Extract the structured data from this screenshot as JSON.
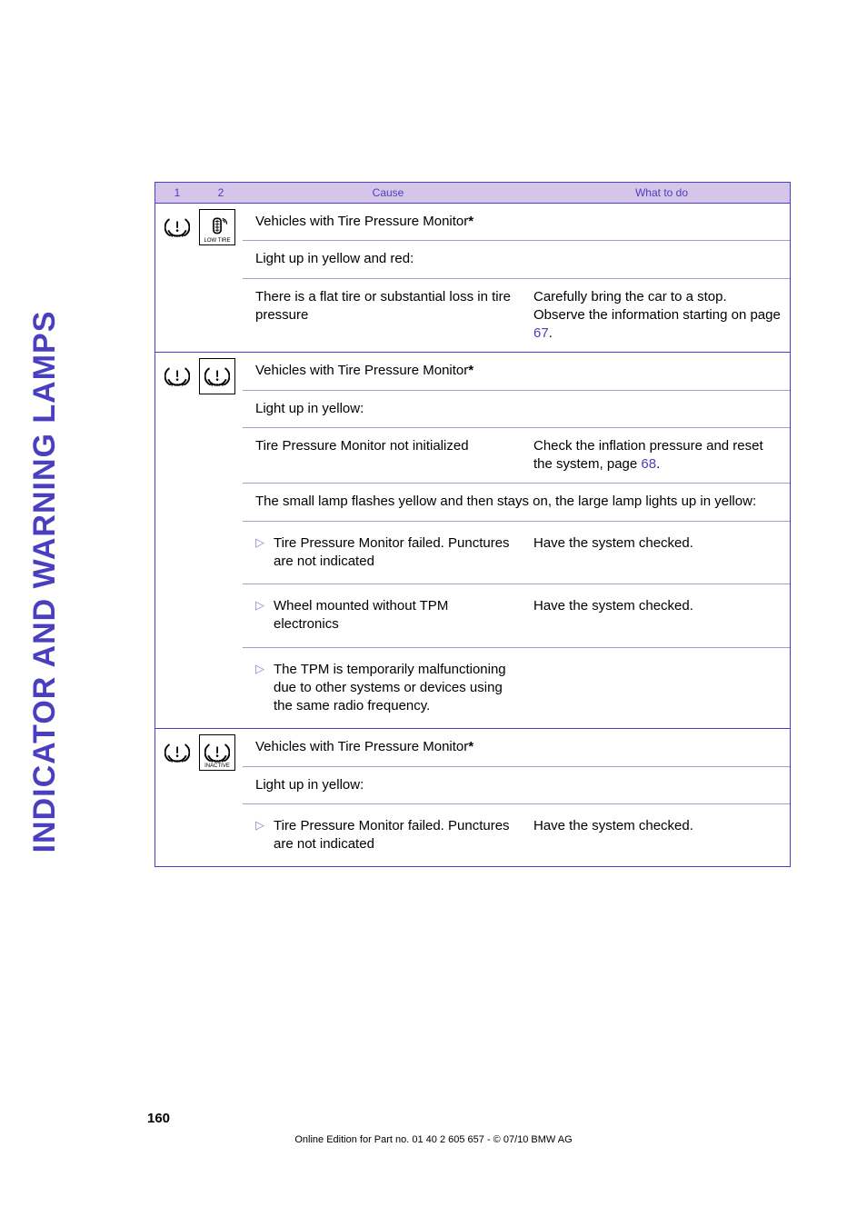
{
  "sidebar": {
    "title": "INDICATOR AND WARNING LAMPS"
  },
  "colors": {
    "accent": "#4a3fbf",
    "header_bg": "#d6c5e8",
    "divider": "#a59ed4",
    "bullet": "#8a7fd8",
    "text": "#000000",
    "background": "#ffffff"
  },
  "header": {
    "col1": "1",
    "col2": "2",
    "cause": "Cause",
    "action": "What to do"
  },
  "sections": [
    {
      "icons": [
        {
          "type": "tpms",
          "border": false,
          "caption": ""
        },
        {
          "type": "lowtire",
          "border": true,
          "caption": "LOW TIRE"
        }
      ],
      "rows": [
        {
          "style": "span",
          "cause_prefix": "Vehicles with Tire Pressure Monitor",
          "cause_star": true,
          "action": ""
        },
        {
          "style": "span",
          "cause": "Light up in yellow and red:",
          "action": ""
        },
        {
          "style": "normal",
          "cause": "There is a flat tire or substantial loss in tire pressure",
          "action_pre": "Carefully bring the car to a stop. Observe the information starting on page ",
          "action_link": "67",
          "action_post": "."
        }
      ]
    },
    {
      "icons": [
        {
          "type": "tpms",
          "border": false,
          "caption": ""
        },
        {
          "type": "tpms",
          "border": true,
          "caption": ""
        }
      ],
      "rows": [
        {
          "style": "span",
          "cause_prefix": "Vehicles with Tire Pressure Monitor",
          "cause_star": true,
          "action": ""
        },
        {
          "style": "span",
          "cause": "Light up in yellow:",
          "action": ""
        },
        {
          "style": "normal",
          "cause": "Tire Pressure Monitor not initialized",
          "action_pre": "Check the inflation pressure and reset the system, page ",
          "action_link": "68",
          "action_post": "."
        },
        {
          "style": "span",
          "cause": "The small lamp flashes yellow and then stays on, the large lamp lights up in yellow:",
          "action": ""
        }
      ],
      "bullets": [
        {
          "cause": "Tire Pressure Monitor failed. Punctures are not indicated",
          "action": "Have the system checked."
        },
        {
          "cause": "Wheel mounted without TPM electronics",
          "action": "Have the system checked."
        },
        {
          "cause": "The TPM is temporarily malfunctioning due to other systems or devices using the same radio frequency.",
          "action": ""
        }
      ]
    },
    {
      "icons": [
        {
          "type": "tpms",
          "border": false,
          "caption": ""
        },
        {
          "type": "tpms",
          "border": true,
          "caption": "INACTIVE"
        }
      ],
      "rows": [
        {
          "style": "span",
          "cause_prefix": "Vehicles with Tire Pressure Monitor",
          "cause_star": true,
          "action": ""
        },
        {
          "style": "span",
          "cause": "Light up in yellow:",
          "action": ""
        }
      ],
      "bullets": [
        {
          "cause": "Tire Pressure Monitor failed. Punctures are not indicated",
          "action": "Have the system checked."
        }
      ]
    }
  ],
  "footer": {
    "page_number": "160",
    "line": "Online Edition for Part no. 01 40 2 605 657 - © 07/10  BMW AG"
  },
  "icon_caption_fontsize": 6
}
